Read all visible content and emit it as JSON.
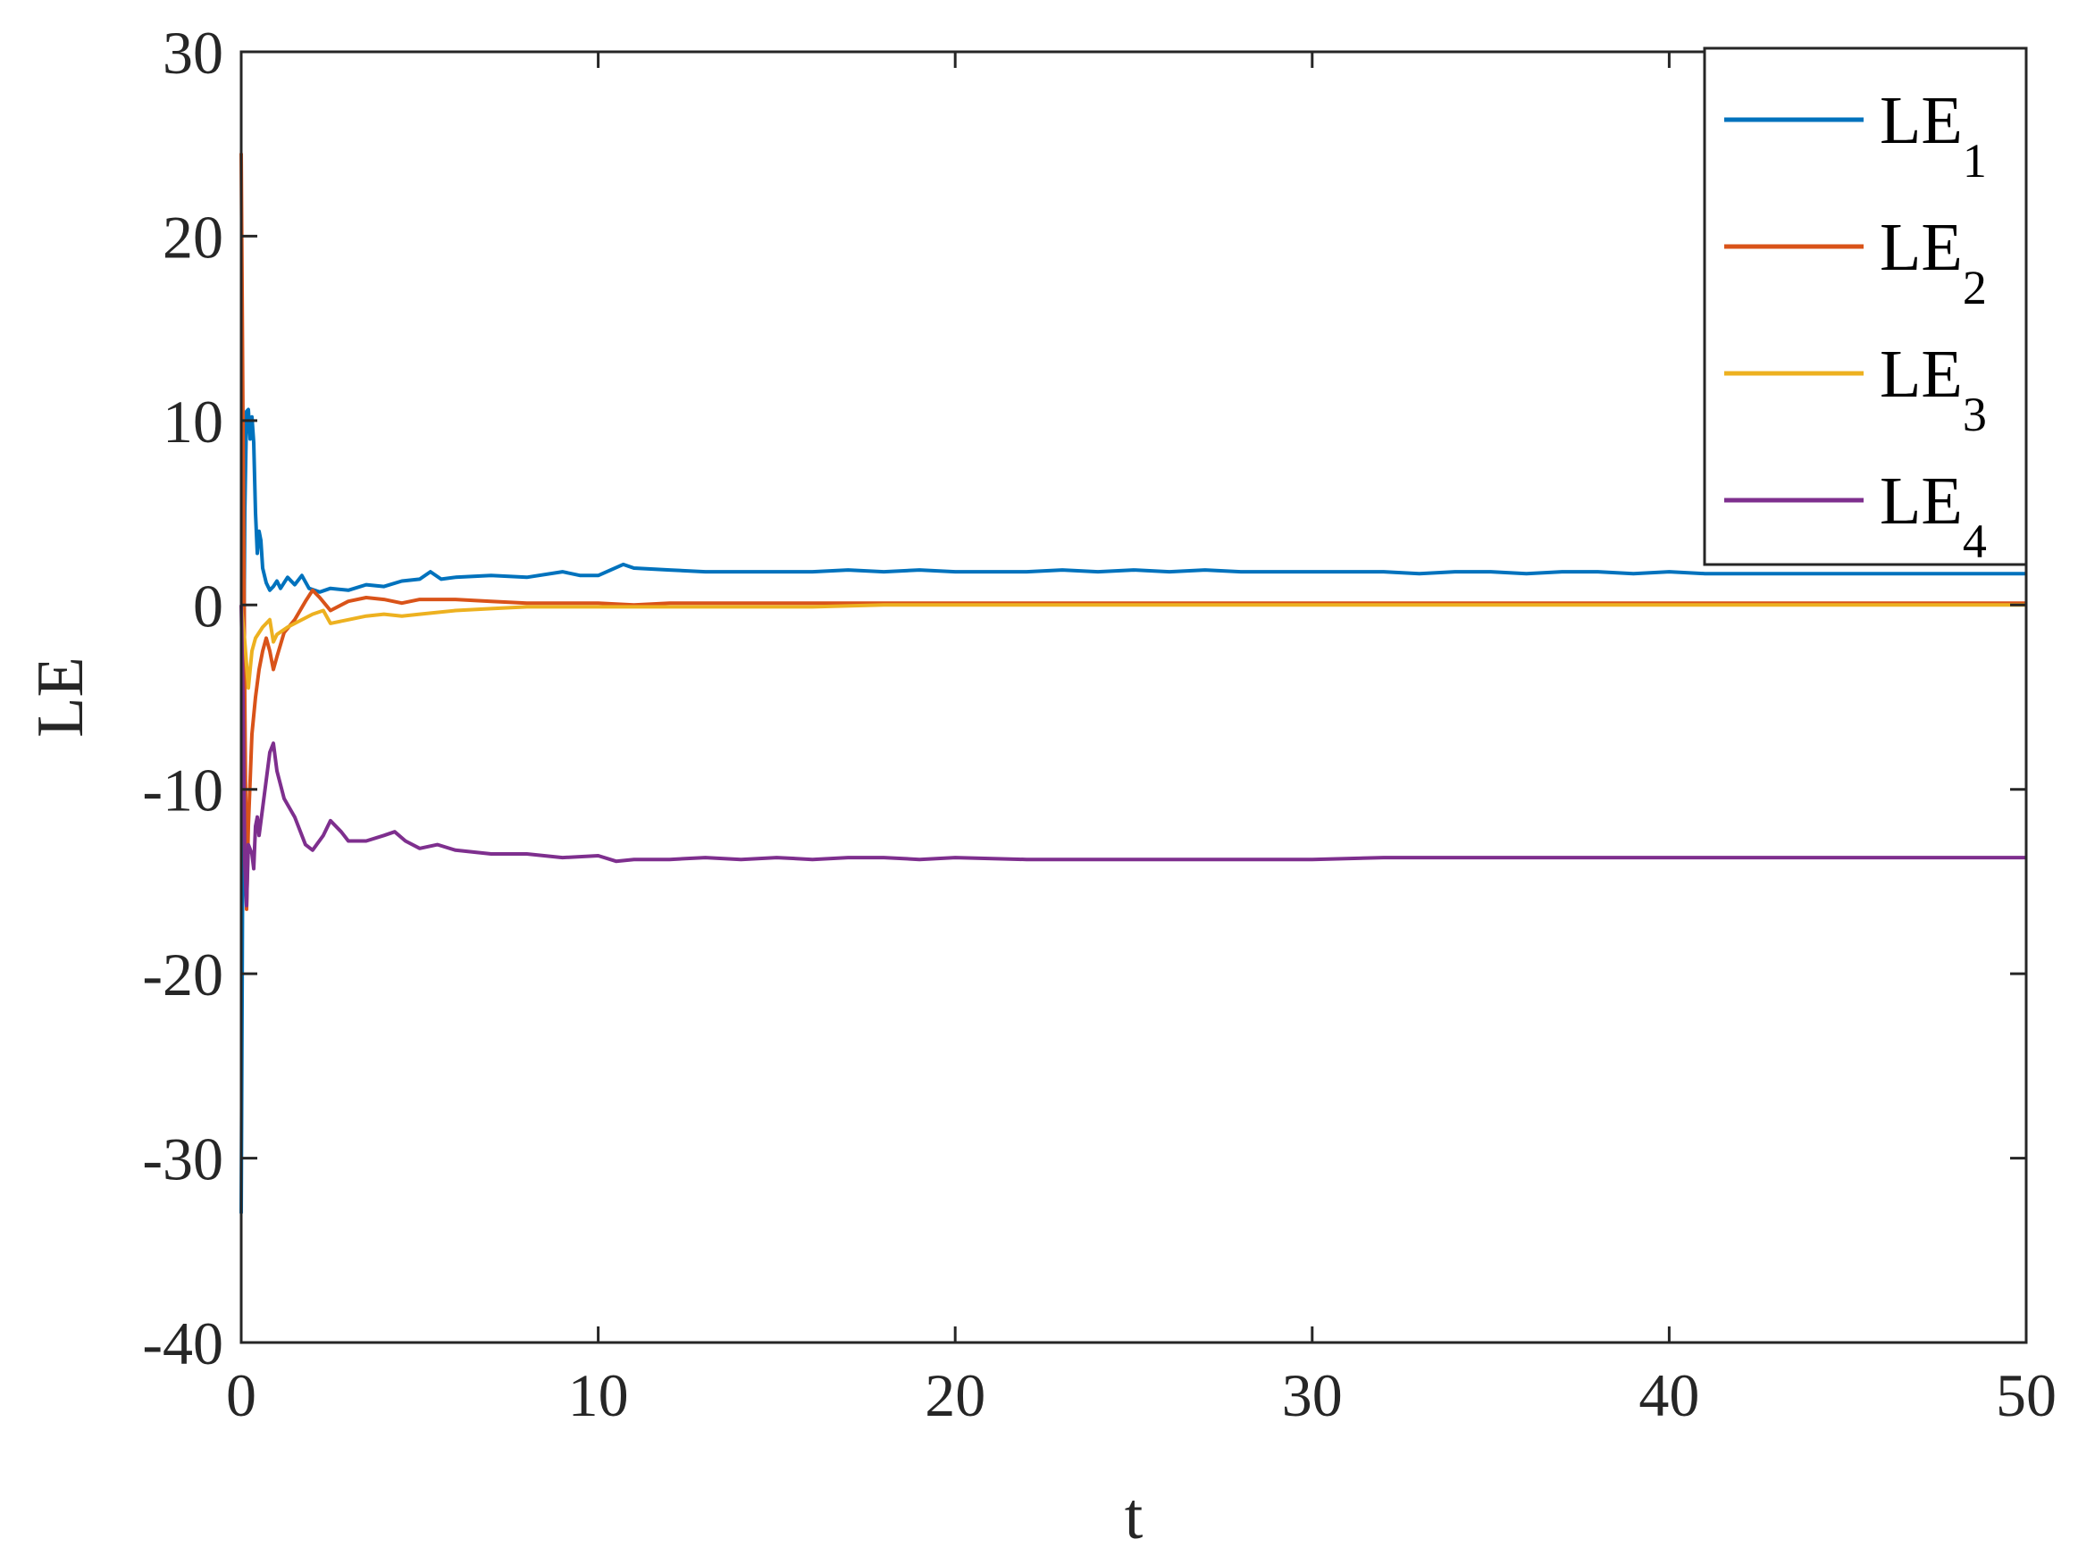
{
  "chart_data": {
    "type": "line",
    "xlabel": "t",
    "ylabel": "LE",
    "xlim": [
      0,
      50
    ],
    "ylim": [
      -40,
      30
    ],
    "x_ticks": [
      0,
      10,
      20,
      30,
      40,
      50
    ],
    "y_ticks": [
      30,
      20,
      10,
      0,
      -10,
      -20,
      -30,
      -40
    ],
    "x_tick_labels": [
      "0",
      "10",
      "20",
      "30",
      "40",
      "50"
    ],
    "y_tick_labels": [
      "30",
      "20",
      "10",
      "0",
      "-10",
      "-20",
      "-30",
      "-40"
    ],
    "grid": false,
    "box": true,
    "legend_position": "top-right",
    "series": [
      {
        "name": "LE1",
        "label_main": "LE",
        "label_sub": "1",
        "color": "#0072BD",
        "points": [
          [
            0,
            -33
          ],
          [
            0.05,
            -10
          ],
          [
            0.1,
            5
          ],
          [
            0.15,
            10.5
          ],
          [
            0.2,
            10.6
          ],
          [
            0.25,
            9
          ],
          [
            0.3,
            10.2
          ],
          [
            0.35,
            8.8
          ],
          [
            0.4,
            5
          ],
          [
            0.45,
            2.8
          ],
          [
            0.5,
            4
          ],
          [
            0.55,
            3.5
          ],
          [
            0.6,
            2
          ],
          [
            0.7,
            1.2
          ],
          [
            0.8,
            0.8
          ],
          [
            0.9,
            1
          ],
          [
            1.0,
            1.3
          ],
          [
            1.1,
            0.9
          ],
          [
            1.3,
            1.5
          ],
          [
            1.5,
            1.1
          ],
          [
            1.7,
            1.6
          ],
          [
            1.9,
            0.9
          ],
          [
            2.2,
            0.7
          ],
          [
            2.5,
            0.9
          ],
          [
            3,
            0.8
          ],
          [
            3.5,
            1.1
          ],
          [
            4,
            1
          ],
          [
            4.5,
            1.3
          ],
          [
            5,
            1.4
          ],
          [
            5.3,
            1.8
          ],
          [
            5.6,
            1.4
          ],
          [
            6,
            1.5
          ],
          [
            7,
            1.6
          ],
          [
            8,
            1.5
          ],
          [
            9,
            1.8
          ],
          [
            9.5,
            1.6
          ],
          [
            10,
            1.6
          ],
          [
            10.7,
            2.2
          ],
          [
            11,
            2
          ],
          [
            12,
            1.9
          ],
          [
            13,
            1.8
          ],
          [
            14,
            1.8
          ],
          [
            15,
            1.8
          ],
          [
            16,
            1.8
          ],
          [
            17,
            1.9
          ],
          [
            18,
            1.8
          ],
          [
            19,
            1.9
          ],
          [
            20,
            1.8
          ],
          [
            21,
            1.8
          ],
          [
            22,
            1.8
          ],
          [
            23,
            1.9
          ],
          [
            24,
            1.8
          ],
          [
            25,
            1.9
          ],
          [
            26,
            1.8
          ],
          [
            27,
            1.9
          ],
          [
            28,
            1.8
          ],
          [
            29,
            1.8
          ],
          [
            30,
            1.8
          ],
          [
            31,
            1.8
          ],
          [
            32,
            1.8
          ],
          [
            33,
            1.7
          ],
          [
            34,
            1.8
          ],
          [
            35,
            1.8
          ],
          [
            36,
            1.7
          ],
          [
            37,
            1.8
          ],
          [
            38,
            1.8
          ],
          [
            39,
            1.7
          ],
          [
            40,
            1.8
          ],
          [
            41,
            1.7
          ],
          [
            42,
            1.7
          ],
          [
            43,
            1.7
          ],
          [
            44,
            1.7
          ],
          [
            45,
            1.7
          ],
          [
            46,
            1.7
          ],
          [
            47,
            1.7
          ],
          [
            48,
            1.7
          ],
          [
            49,
            1.7
          ],
          [
            50,
            1.7
          ]
        ]
      },
      {
        "name": "LE2",
        "label_main": "LE",
        "label_sub": "2",
        "color": "#D95319",
        "points": [
          [
            0,
            24.5
          ],
          [
            0.05,
            10
          ],
          [
            0.1,
            -5
          ],
          [
            0.15,
            -16.5
          ],
          [
            0.2,
            -12
          ],
          [
            0.3,
            -7
          ],
          [
            0.4,
            -5
          ],
          [
            0.5,
            -3.5
          ],
          [
            0.6,
            -2.5
          ],
          [
            0.7,
            -1.8
          ],
          [
            0.8,
            -2.5
          ],
          [
            0.9,
            -3.5
          ],
          [
            1.0,
            -2.8
          ],
          [
            1.2,
            -1.5
          ],
          [
            1.5,
            -0.8
          ],
          [
            1.8,
            0.2
          ],
          [
            2.0,
            0.8
          ],
          [
            2.2,
            0.4
          ],
          [
            2.5,
            -0.3
          ],
          [
            3.0,
            0.2
          ],
          [
            3.5,
            0.4
          ],
          [
            4,
            0.3
          ],
          [
            4.5,
            0.1
          ],
          [
            5,
            0.3
          ],
          [
            6,
            0.3
          ],
          [
            7,
            0.2
          ],
          [
            8,
            0.1
          ],
          [
            9,
            0.1
          ],
          [
            10,
            0.1
          ],
          [
            11,
            0
          ],
          [
            12,
            0.1
          ],
          [
            13,
            0.1
          ],
          [
            14,
            0.1
          ],
          [
            15,
            0.1
          ],
          [
            16,
            0.1
          ],
          [
            17,
            0.1
          ],
          [
            18,
            0.1
          ],
          [
            19,
            0.1
          ],
          [
            20,
            0.1
          ],
          [
            22,
            0.1
          ],
          [
            24,
            0.1
          ],
          [
            26,
            0.1
          ],
          [
            28,
            0.1
          ],
          [
            30,
            0.1
          ],
          [
            32,
            0.1
          ],
          [
            34,
            0.1
          ],
          [
            36,
            0.1
          ],
          [
            38,
            0.1
          ],
          [
            40,
            0.1
          ],
          [
            42,
            0.1
          ],
          [
            44,
            0.1
          ],
          [
            46,
            0.1
          ],
          [
            48,
            0.1
          ],
          [
            50,
            0.1
          ]
        ]
      },
      {
        "name": "LE3",
        "label_main": "LE",
        "label_sub": "3",
        "color": "#EDB120",
        "points": [
          [
            0,
            0
          ],
          [
            0.1,
            -2
          ],
          [
            0.2,
            -4.5
          ],
          [
            0.3,
            -2.5
          ],
          [
            0.4,
            -1.8
          ],
          [
            0.6,
            -1.2
          ],
          [
            0.8,
            -0.8
          ],
          [
            0.9,
            -2
          ],
          [
            1.0,
            -1.6
          ],
          [
            1.3,
            -1.2
          ],
          [
            1.6,
            -0.9
          ],
          [
            2.0,
            -0.5
          ],
          [
            2.3,
            -0.3
          ],
          [
            2.5,
            -1
          ],
          [
            3,
            -0.8
          ],
          [
            3.5,
            -0.6
          ],
          [
            4,
            -0.5
          ],
          [
            4.5,
            -0.6
          ],
          [
            5,
            -0.5
          ],
          [
            6,
            -0.3
          ],
          [
            7,
            -0.2
          ],
          [
            8,
            -0.1
          ],
          [
            9,
            -0.1
          ],
          [
            10,
            -0.1
          ],
          [
            12,
            -0.1
          ],
          [
            14,
            -0.1
          ],
          [
            16,
            -0.1
          ],
          [
            18,
            0
          ],
          [
            20,
            0
          ],
          [
            22,
            0
          ],
          [
            24,
            0
          ],
          [
            26,
            0
          ],
          [
            28,
            0
          ],
          [
            30,
            0
          ],
          [
            32,
            0
          ],
          [
            34,
            0
          ],
          [
            36,
            0
          ],
          [
            38,
            0
          ],
          [
            40,
            0
          ],
          [
            42,
            0
          ],
          [
            44,
            0
          ],
          [
            46,
            0
          ],
          [
            48,
            0
          ],
          [
            50,
            0
          ]
        ]
      },
      {
        "name": "LE4",
        "label_main": "LE",
        "label_sub": "4",
        "color": "#7E2F8E",
        "points": [
          [
            0,
            0
          ],
          [
            0.05,
            -5
          ],
          [
            0.1,
            -14
          ],
          [
            0.15,
            -16.3
          ],
          [
            0.2,
            -13
          ],
          [
            0.3,
            -13.5
          ],
          [
            0.35,
            -14.3
          ],
          [
            0.4,
            -12
          ],
          [
            0.45,
            -11.5
          ],
          [
            0.5,
            -12.5
          ],
          [
            0.6,
            -11
          ],
          [
            0.7,
            -9.5
          ],
          [
            0.8,
            -8
          ],
          [
            0.9,
            -7.5
          ],
          [
            1.0,
            -9
          ],
          [
            1.2,
            -10.5
          ],
          [
            1.5,
            -11.5
          ],
          [
            1.8,
            -13
          ],
          [
            2.0,
            -13.3
          ],
          [
            2.3,
            -12.5
          ],
          [
            2.5,
            -11.7
          ],
          [
            2.8,
            -12.3
          ],
          [
            3.0,
            -12.8
          ],
          [
            3.5,
            -12.8
          ],
          [
            4.0,
            -12.5
          ],
          [
            4.3,
            -12.3
          ],
          [
            4.6,
            -12.8
          ],
          [
            5,
            -13.2
          ],
          [
            5.5,
            -13
          ],
          [
            6,
            -13.3
          ],
          [
            7,
            -13.5
          ],
          [
            8,
            -13.5
          ],
          [
            9,
            -13.7
          ],
          [
            10,
            -13.6
          ],
          [
            10.5,
            -13.9
          ],
          [
            11,
            -13.8
          ],
          [
            12,
            -13.8
          ],
          [
            13,
            -13.7
          ],
          [
            14,
            -13.8
          ],
          [
            15,
            -13.7
          ],
          [
            16,
            -13.8
          ],
          [
            17,
            -13.7
          ],
          [
            18,
            -13.7
          ],
          [
            19,
            -13.8
          ],
          [
            20,
            -13.7
          ],
          [
            22,
            -13.8
          ],
          [
            24,
            -13.8
          ],
          [
            26,
            -13.8
          ],
          [
            28,
            -13.8
          ],
          [
            30,
            -13.8
          ],
          [
            32,
            -13.7
          ],
          [
            34,
            -13.7
          ],
          [
            36,
            -13.7
          ],
          [
            38,
            -13.7
          ],
          [
            40,
            -13.7
          ],
          [
            42,
            -13.7
          ],
          [
            44,
            -13.7
          ],
          [
            46,
            -13.7
          ],
          [
            48,
            -13.7
          ],
          [
            50,
            -13.7
          ]
        ]
      }
    ]
  }
}
